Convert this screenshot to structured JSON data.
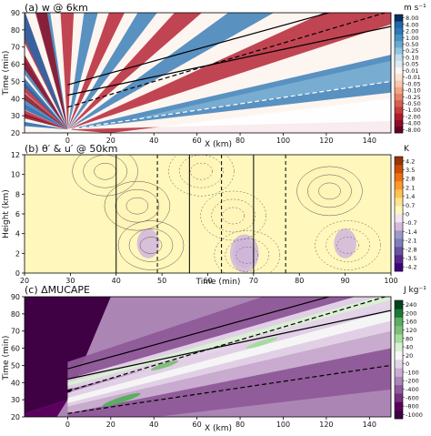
{
  "chart_data": [
    {
      "type": "heatmap",
      "title": "(a) w @ 6km",
      "xlabel": "X (km)",
      "ylabel": "Time (min)",
      "xlim": [
        -20,
        150
      ],
      "ylim": [
        20,
        90
      ],
      "xticks": [
        0,
        20,
        40,
        60,
        80,
        100,
        120,
        140
      ],
      "yticks": [
        20,
        30,
        40,
        50,
        60,
        70,
        80,
        90
      ],
      "colorbar": {
        "unit": "m s⁻¹",
        "labels": [
          "-8.00",
          "-4.00",
          "-2.00",
          "-1.00",
          "-0.50",
          "-0.25",
          "-0.10",
          "-0.05",
          "-0.01",
          "0.01",
          "0.05",
          "0.10",
          "0.25",
          "0.50",
          "1.00",
          "2.00",
          "4.00",
          "8.00"
        ],
        "colors": [
          "#67001f",
          "#8e0d25",
          "#b2182b",
          "#c43c3c",
          "#d6604d",
          "#e58368",
          "#f4a582",
          "#f8c8ad",
          "#fbe3d4",
          "#fdf5f0",
          "#ddebf2",
          "#c2dcec",
          "#92c5de",
          "#6aa9cf",
          "#4393c3",
          "#2f78b5",
          "#2166ac",
          "#053061"
        ]
      },
      "lines": [
        {
          "style": "solid",
          "x": [
            0,
            150
          ],
          "y": [
            42,
            82
          ]
        },
        {
          "style": "solid",
          "x": [
            0,
            150
          ],
          "y": [
            48,
            100
          ]
        },
        {
          "style": "dashed",
          "x": [
            0,
            150
          ],
          "y": [
            35,
            91
          ]
        },
        {
          "style": "dashed",
          "x": [
            0,
            150
          ],
          "y": [
            22,
            50
          ]
        }
      ]
    },
    {
      "type": "heatmap",
      "title": "(b) θ′ & u′ @ 50km",
      "xlabel": "Time (min)",
      "ylabel": "Height (km)",
      "xlim": [
        20,
        100
      ],
      "ylim": [
        0,
        12
      ],
      "xticks": [
        20,
        30,
        40,
        50,
        60,
        70,
        80,
        90,
        100
      ],
      "yticks": [
        0,
        2,
        4,
        6,
        8,
        10,
        12
      ],
      "colorbar": {
        "unit": "K",
        "labels": [
          "-4.2",
          "-3.5",
          "-2.8",
          "-2.1",
          "-1.4",
          "-0.7",
          "0",
          "0.7",
          "1.4",
          "2.1",
          "2.8",
          "3.5",
          "4.2"
        ],
        "colors": [
          "#3f007d",
          "#54278f",
          "#6a51a3",
          "#807dba",
          "#9e9ac8",
          "#d4b9da",
          "#f2e4f0",
          "#fff7bc",
          "#fee391",
          "#fec44f",
          "#fe9929",
          "#ec7014",
          "#cc4c02",
          "#993404"
        ]
      },
      "vertical_lines": [
        {
          "x": 40,
          "style": "solid"
        },
        {
          "x": 49,
          "style": "dashed"
        },
        {
          "x": 56,
          "style": "solid"
        },
        {
          "x": 63,
          "style": "dashed"
        },
        {
          "x": 70,
          "style": "solid"
        },
        {
          "x": 77,
          "style": "dashed"
        }
      ],
      "blobs": [
        {
          "x": 44,
          "y": 7,
          "value": 4.0
        },
        {
          "x": 65,
          "y": 6,
          "value": 2.5
        },
        {
          "x": 86,
          "y": 8.5,
          "value": 3.5
        },
        {
          "x": 58,
          "y": 10.5,
          "value": 2.0
        },
        {
          "x": 37,
          "y": 10.5,
          "value": 1.5
        },
        {
          "x": 68,
          "y": 2,
          "value": -1.5
        },
        {
          "x": 47,
          "y": 3,
          "value": -0.7
        },
        {
          "x": 90,
          "y": 3,
          "value": -0.7
        }
      ]
    },
    {
      "type": "heatmap",
      "title": "(c) ΔMUCAPE",
      "xlabel": "X (km)",
      "ylabel": "Time (min)",
      "xlim": [
        -20,
        150
      ],
      "ylim": [
        20,
        90
      ],
      "xticks": [
        0,
        20,
        40,
        60,
        80,
        100,
        120,
        140
      ],
      "yticks": [
        20,
        30,
        40,
        50,
        60,
        70,
        80,
        90
      ],
      "colorbar": {
        "unit": "J kg⁻¹",
        "labels": [
          "-1000",
          "-800",
          "-600",
          "-400",
          "-200",
          "-100",
          "0",
          "20",
          "40",
          "80",
          "120",
          "160",
          "200",
          "240"
        ],
        "colors": [
          "#3f0044",
          "#5c0060",
          "#76307f",
          "#8f5a99",
          "#ab86b5",
          "#c9add0",
          "#e4d4e8",
          "#f7f7f7",
          "#d9f0d3",
          "#a6dba0",
          "#7fbf7b",
          "#5aae61",
          "#1b7837",
          "#00441b"
        ]
      },
      "lines": [
        {
          "style": "solid",
          "x": [
            0,
            150
          ],
          "y": [
            42,
            82
          ]
        },
        {
          "style": "solid",
          "x": [
            0,
            150
          ],
          "y": [
            48,
            100
          ]
        },
        {
          "style": "dashed",
          "x": [
            0,
            150
          ],
          "y": [
            35,
            91
          ]
        },
        {
          "style": "dashed",
          "x": [
            0,
            150
          ],
          "y": [
            22,
            50
          ]
        }
      ]
    }
  ]
}
